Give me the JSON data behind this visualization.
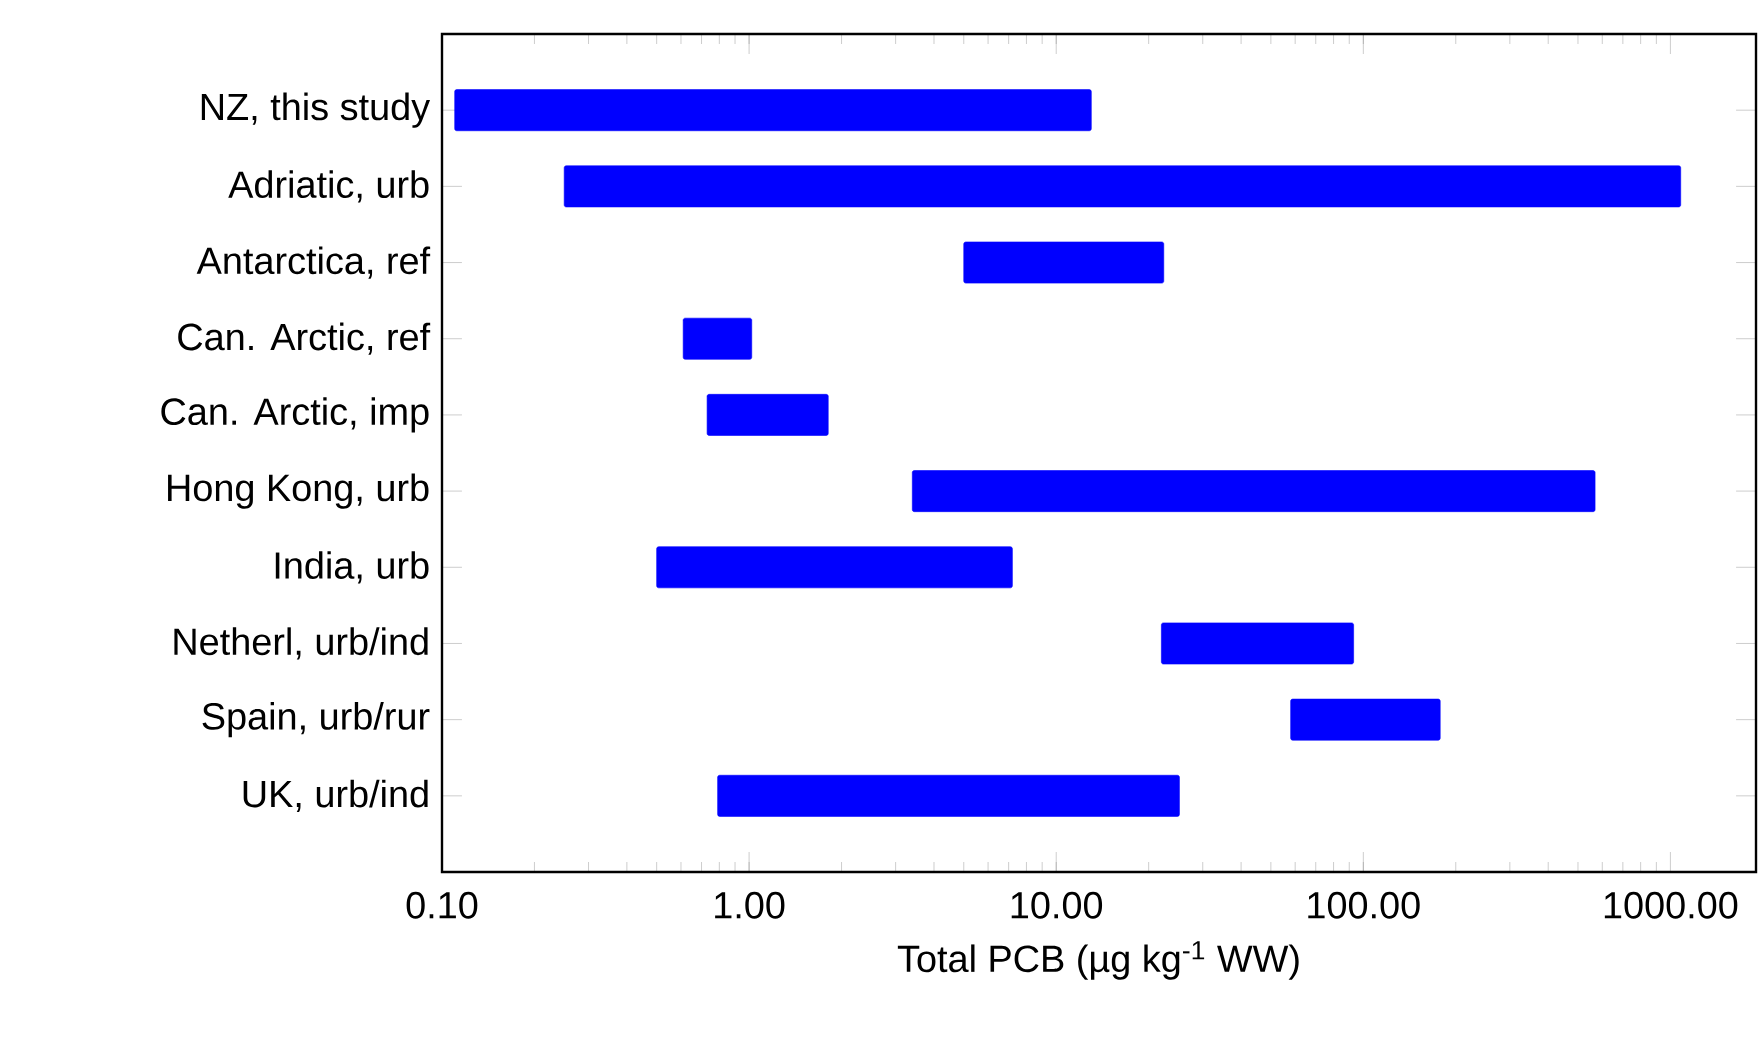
{
  "chart_data": {
    "type": "bar",
    "orientation": "horizontal",
    "log": "x",
    "xlabel": "Total PCB (µg kg$^{-1}$ WW)",
    "categories": [
      "NZ, this study",
      "Adriatic, urb",
      "Antarctica, ref",
      "Can. Arctic, ref",
      "Can. Arctic, imp",
      "Hong Kong, urb",
      "India, urb",
      "Netherl, urb/ind",
      "Spain, urb/rur",
      "UK, urb/ind"
    ],
    "base": [
      0.11,
      0.25,
      5,
      0.61,
      0.73,
      3.4,
      0.5,
      22,
      58,
      0.79
    ],
    "values": [
      12.9,
      1080,
      17.4,
      0.41,
      1.08,
      565,
      6.7,
      71,
      120,
      24.4
    ],
    "color": "#0000ff",
    "xlim": [
      0.1,
      1900
    ],
    "xticks": [
      {
        "value": 0.1,
        "label": "0.10"
      },
      {
        "value": 1,
        "label": "1.00"
      },
      {
        "value": 10,
        "label": "10.00"
      },
      {
        "value": 100,
        "label": "100.00"
      },
      {
        "value": 1000,
        "label": "1000.00"
      }
    ]
  }
}
